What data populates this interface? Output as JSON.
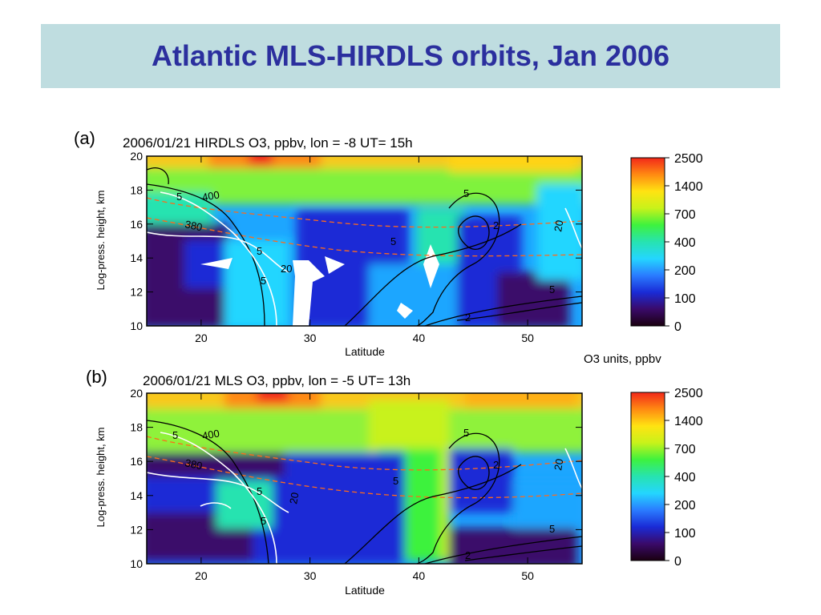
{
  "slide": {
    "title": "Atlantic MLS-HIRDLS orbits, Jan 2006"
  },
  "units_note": "O3 units, ppbv",
  "chart_data": [
    {
      "type": "heatmap",
      "panel_label": "(a)",
      "title": "2006/01/21 HIRDLS O3, ppbv, lon = -8 UT= 15h",
      "xlabel": "Latitude",
      "ylabel": "Log-press. height, km",
      "xlim": [
        15,
        55
      ],
      "ylim": [
        10,
        20
      ],
      "x_ticks": [
        20,
        30,
        40,
        50
      ],
      "y_ticks": [
        10,
        12,
        14,
        16,
        18,
        20
      ],
      "colorbar_labels": [
        "2500",
        "1400",
        "700",
        "400",
        "200",
        "100",
        "0"
      ],
      "colorbar_colors": [
        "#1a0010",
        "#3a0a6a",
        "#1a2bd6",
        "#2a7cff",
        "#24d6ff",
        "#27e3b0",
        "#3ef23e",
        "#c8f21a",
        "#ffe312",
        "#ff8a12",
        "#f2281a"
      ],
      "contour_labels": [
        "400",
        "380",
        "5",
        "5",
        "5",
        "5",
        "5",
        "2",
        "2",
        "5",
        "20",
        "20"
      ],
      "white_contour_labels": [
        "20",
        "20"
      ],
      "colored_contour_labels": [
        "400",
        "380"
      ]
    },
    {
      "type": "heatmap",
      "panel_label": "(b)",
      "title": "2006/01/21 MLS O3, ppbv, lon = -5 UT= 13h",
      "xlabel": "Latitude",
      "ylabel": "Log-press. height, km",
      "xlim": [
        15,
        55
      ],
      "ylim": [
        10,
        20
      ],
      "x_ticks": [
        20,
        30,
        40,
        50
      ],
      "y_ticks": [
        10,
        12,
        14,
        16,
        18,
        20
      ],
      "colorbar_labels": [
        "2500",
        "1400",
        "700",
        "400",
        "200",
        "100",
        "0"
      ],
      "colorbar_colors": [
        "#1a0010",
        "#3a0a6a",
        "#1a2bd6",
        "#2a7cff",
        "#24d6ff",
        "#27e3b0",
        "#3ef23e",
        "#c8f21a",
        "#ffe312",
        "#ff8a12",
        "#f2281a"
      ],
      "contour_labels": [
        "400",
        "380",
        "5",
        "5",
        "5",
        "5",
        "5",
        "5",
        "2",
        "2",
        "20",
        "20"
      ],
      "white_contour_labels": [
        "20",
        "20"
      ],
      "colored_contour_labels": [
        "400",
        "380"
      ]
    }
  ]
}
